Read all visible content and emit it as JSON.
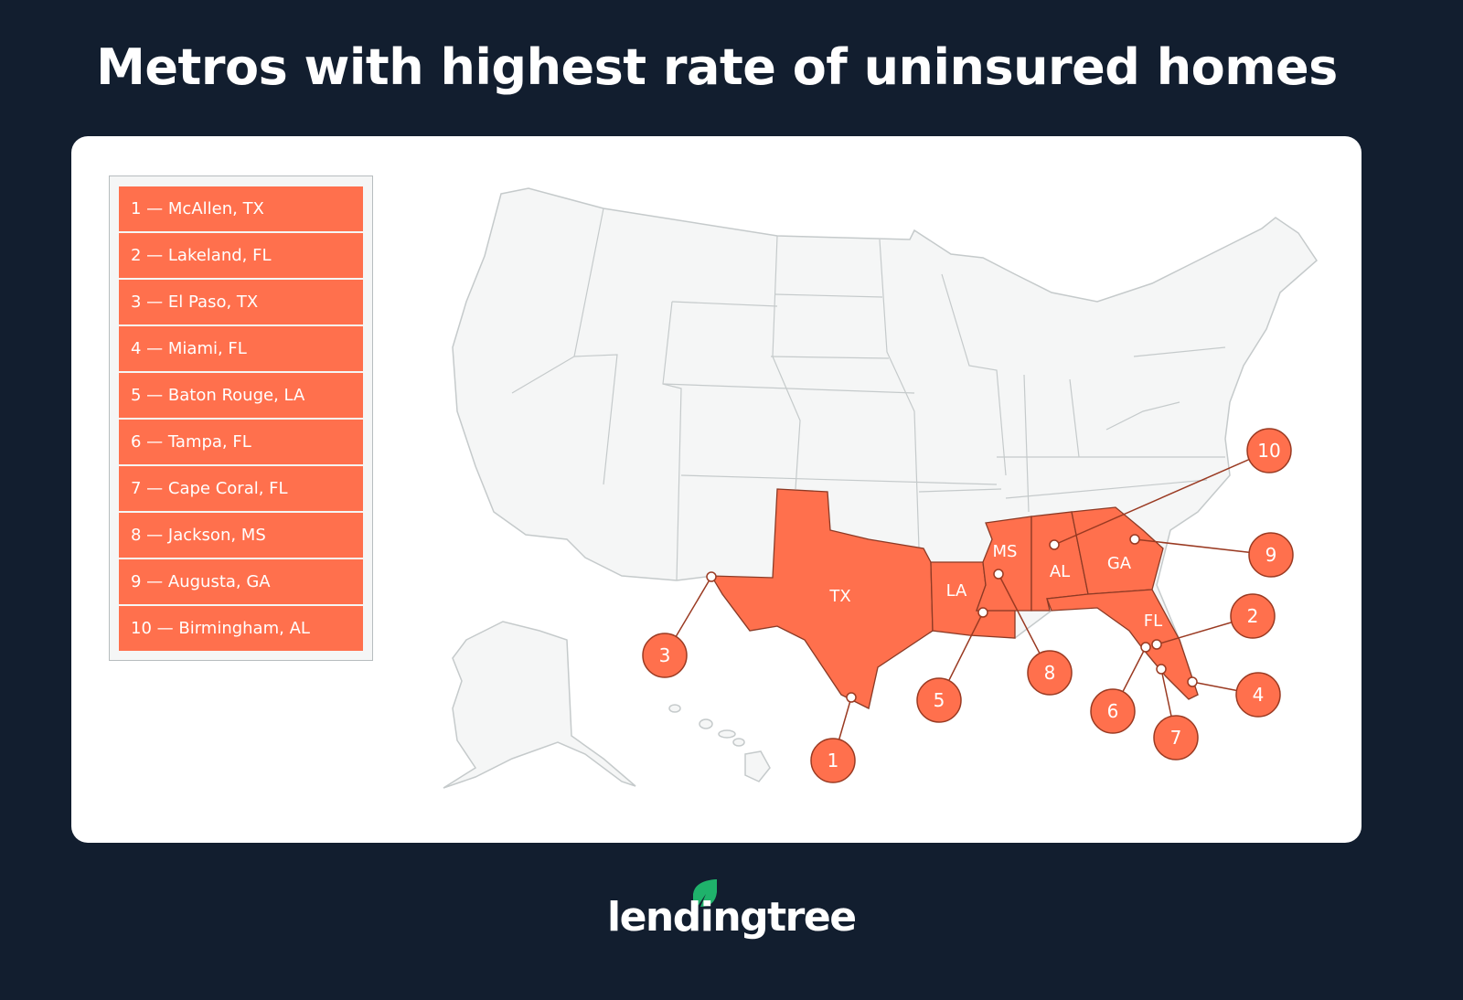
{
  "title": "Metros with highest rate of uninsured homes",
  "legend": [
    "1 — McAllen, TX",
    "2 — Lakeland, FL",
    "3 — El Paso, TX",
    "4 — Miami, FL",
    "5 — Baton Rouge, LA",
    "6 — Tampa, FL",
    "7 — Cape Coral, FL",
    "8 — Jackson, MS",
    "9 — Augusta, GA",
    "10 — Birmingham, AL"
  ],
  "highlighted_states": [
    "TX",
    "LA",
    "MS",
    "AL",
    "GA",
    "FL"
  ],
  "callouts": [
    "1",
    "2",
    "3",
    "4",
    "5",
    "6",
    "7",
    "8",
    "9",
    "10"
  ],
  "colors": {
    "background": "#121e2f",
    "highlight": "#ff704d",
    "map_base": "#f5f6f6",
    "border": "#c5cacb",
    "callout_line": "#9a3a22",
    "logo_leaf": "#1fb26b"
  },
  "logo": {
    "text": "lendingtree",
    "mark": "®"
  }
}
